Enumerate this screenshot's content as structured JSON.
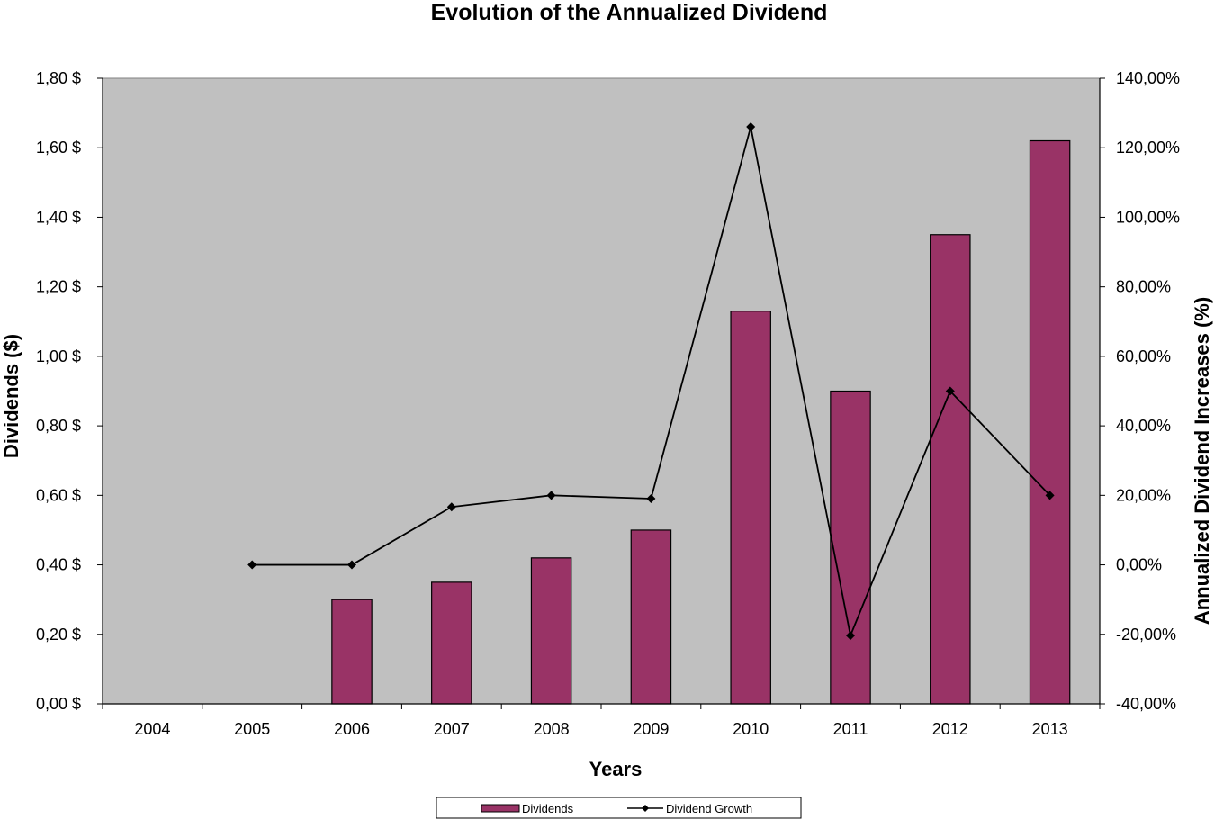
{
  "chart_data": {
    "type": "bar",
    "title": "Evolution of the Annualized Dividend",
    "xlabel": "Years",
    "ylabel": "Dividends ($)",
    "y2label": "Annualized Dividend Increases (%)",
    "categories": [
      "2004",
      "2005",
      "2006",
      "2007",
      "2008",
      "2009",
      "2010",
      "2011",
      "2012",
      "2013"
    ],
    "ylim": [
      0,
      1.8
    ],
    "y2lim": [
      -40,
      140
    ],
    "y_ticks": [
      "0,00 $",
      "0,20 $",
      "0,40 $",
      "0,60 $",
      "0,80 $",
      "1,00 $",
      "1,20 $",
      "1,40 $",
      "1,60 $",
      "1,80 $"
    ],
    "y2_ticks": [
      "-40,00%",
      "-20,00%",
      "0,00%",
      "20,00%",
      "40,00%",
      "60,00%",
      "80,00%",
      "100,00%",
      "120,00%",
      "140,00%"
    ],
    "grid": false,
    "legend_position": "bottom",
    "plot_background": "#c0c0c0",
    "series": [
      {
        "name": "Dividends",
        "type": "bar",
        "axis": "left",
        "color": "#993366",
        "values": [
          null,
          null,
          0.3,
          0.35,
          0.42,
          0.5,
          1.13,
          0.9,
          1.35,
          1.62
        ]
      },
      {
        "name": "Dividend Growth",
        "type": "line",
        "axis": "right",
        "color": "#000000",
        "marker": "diamond",
        "values": [
          null,
          0.0,
          0.0,
          16.67,
          20.0,
          19.05,
          126.0,
          -20.35,
          50.0,
          20.0
        ]
      }
    ]
  }
}
